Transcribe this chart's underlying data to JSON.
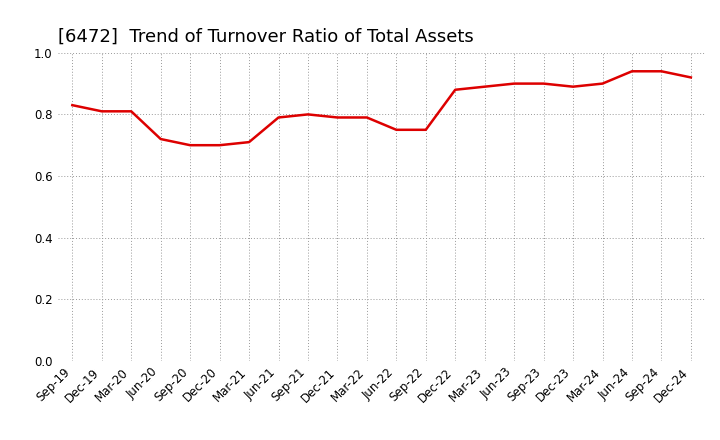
{
  "title": "[6472]  Trend of Turnover Ratio of Total Assets",
  "x_labels": [
    "Sep-19",
    "Dec-19",
    "Mar-20",
    "Jun-20",
    "Sep-20",
    "Dec-20",
    "Mar-21",
    "Jun-21",
    "Sep-21",
    "Dec-21",
    "Mar-22",
    "Jun-22",
    "Sep-22",
    "Dec-22",
    "Mar-23",
    "Jun-23",
    "Sep-23",
    "Dec-23",
    "Mar-24",
    "Jun-24",
    "Sep-24",
    "Dec-24"
  ],
  "values": [
    0.83,
    0.81,
    0.81,
    0.72,
    0.7,
    0.7,
    0.71,
    0.79,
    0.8,
    0.79,
    0.79,
    0.75,
    0.75,
    0.88,
    0.89,
    0.9,
    0.9,
    0.89,
    0.9,
    0.94,
    0.94,
    0.92
  ],
  "line_color": "#dd0000",
  "line_width": 1.8,
  "ylim": [
    0.0,
    1.0
  ],
  "yticks": [
    0.0,
    0.2,
    0.4,
    0.6,
    0.8,
    1.0
  ],
  "grid_color": "#999999",
  "background_color": "#ffffff",
  "title_fontsize": 13,
  "tick_fontsize": 8.5
}
